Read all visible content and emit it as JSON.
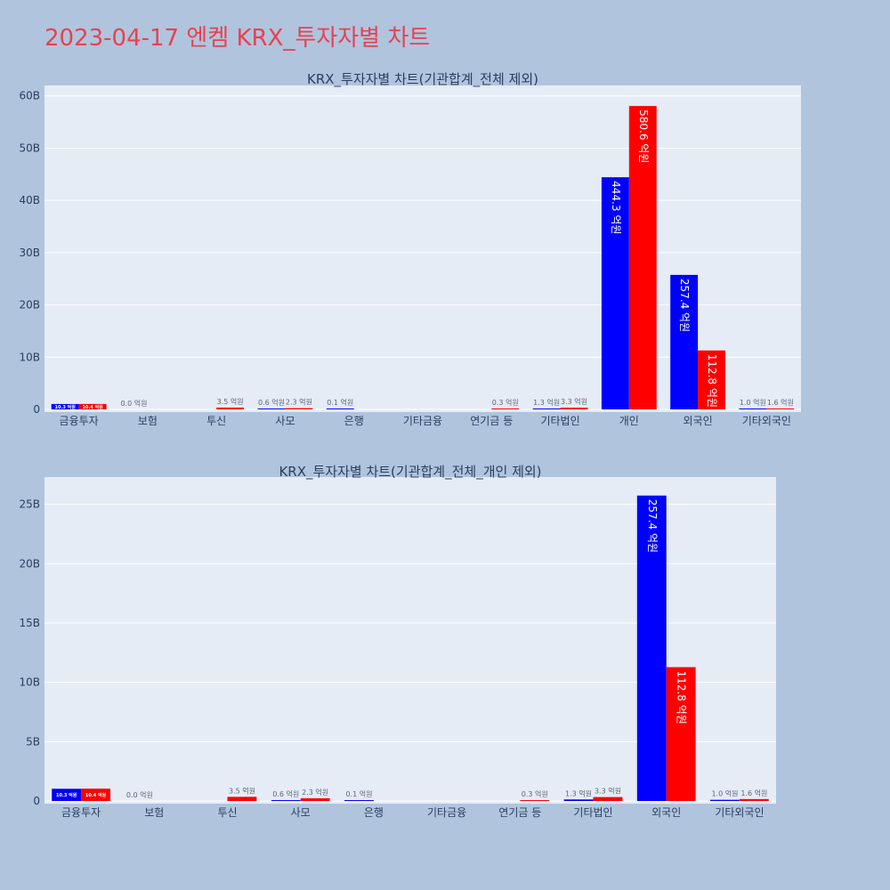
{
  "page_title": "2023-04-17 엔켐 KRX_투자자별 차트",
  "colors": {
    "buy": "#0000ff",
    "sell": "#ff0000",
    "title": "#e8424f"
  },
  "chart_data": [
    {
      "type": "bar",
      "title": "KRX_투자자별 차트(기관합계_전체 제외)",
      "categories": [
        "금융투자",
        "보험",
        "투신",
        "사모",
        "은행",
        "기타금융",
        "연기금 등",
        "기타법인",
        "개인",
        "외국인",
        "기타외국인"
      ],
      "y_ticks": [
        "0",
        "10B",
        "20B",
        "30B",
        "40B",
        "50B",
        "60B"
      ],
      "ylim": [
        0,
        62000000000
      ],
      "series": [
        {
          "values": [
            1030000000,
            0,
            0,
            60000000,
            10000000,
            0,
            0,
            130000000,
            44430000000,
            25740000000,
            100000000
          ],
          "labels": [
            "10.3 억원",
            "0.0 억원",
            "",
            "0.6 억원",
            "0.1 억원",
            "",
            "",
            "1.3 억원",
            "444.3 억원",
            "257.4 억원",
            "1.0 억원"
          ]
        },
        {
          "values": [
            1040000000,
            0,
            350000000,
            230000000,
            0,
            0,
            30000000,
            330000000,
            58060000000,
            11280000000,
            160000000
          ],
          "labels": [
            "10.4 억원",
            "",
            "3.5 억원",
            "2.3 억원",
            "",
            "",
            "0.3 억원",
            "3.3 억원",
            "580.6 억원",
            "112.8 억원",
            "1.6 억원"
          ]
        }
      ]
    },
    {
      "type": "bar",
      "title": "KRX_투자자별 차트(기관합계_전체_개인 제외)",
      "categories": [
        "금융투자",
        "보험",
        "투신",
        "사모",
        "은행",
        "기타금융",
        "연기금 등",
        "기타법인",
        "외국인",
        "기타외국인"
      ],
      "y_ticks": [
        "0",
        "5B",
        "10B",
        "15B",
        "20B",
        "25B"
      ],
      "ylim": [
        0,
        27300000000
      ],
      "series": [
        {
          "values": [
            1030000000,
            0,
            0,
            60000000,
            10000000,
            0,
            0,
            130000000,
            25740000000,
            100000000
          ],
          "labels": [
            "10.3 억원",
            "0.0 억원",
            "",
            "0.6 억원",
            "0.1 억원",
            "",
            "",
            "1.3 억원",
            "257.4 억원",
            "1.0 억원"
          ]
        },
        {
          "values": [
            1040000000,
            0,
            350000000,
            230000000,
            0,
            0,
            30000000,
            330000000,
            11280000000,
            160000000
          ],
          "labels": [
            "10.4 억원",
            "",
            "3.5 억원",
            "2.3 억원",
            "",
            "",
            "0.3 억원",
            "3.3 억원",
            "112.8 억원",
            "1.6 억원"
          ]
        }
      ]
    }
  ]
}
